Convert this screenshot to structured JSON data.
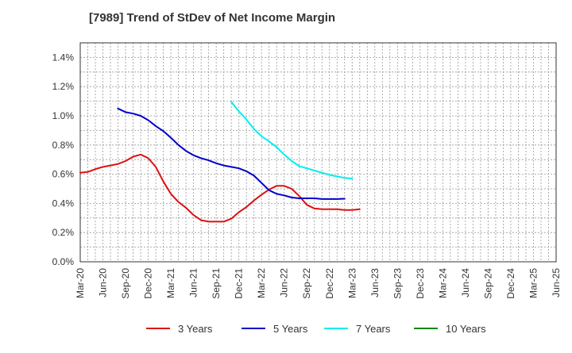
{
  "chart_data": {
    "type": "line",
    "title": "[7989]  Trend of StDev of Net Income Margin",
    "xlabel": "",
    "ylabel": "",
    "ylim": [
      0,
      1.5
    ],
    "y_ticks": [
      0,
      0.2,
      0.4,
      0.6,
      0.8,
      1.0,
      1.2,
      1.4
    ],
    "y_tick_labels": [
      "0.0%",
      "0.2%",
      "0.4%",
      "0.6%",
      "0.8%",
      "1.0%",
      "1.2%",
      "1.4%"
    ],
    "x_tick_labels": [
      "Mar-20",
      "Jun-20",
      "Sep-20",
      "Dec-20",
      "Mar-21",
      "Jun-21",
      "Sep-21",
      "Dec-21",
      "Mar-22",
      "Jun-22",
      "Sep-22",
      "Dec-22",
      "Mar-23",
      "Jun-23",
      "Sep-23",
      "Dec-23",
      "Mar-24",
      "Jun-24",
      "Sep-24",
      "Dec-24",
      "Mar-25",
      "Jun-25"
    ],
    "grid": true,
    "legend_position": "bottom",
    "series": [
      {
        "name": "3 Years",
        "color": "#dd1111",
        "values": [
          0.61,
          0.615,
          0.635,
          0.65,
          0.66,
          0.67,
          0.69,
          0.72,
          0.735,
          0.71,
          0.65,
          0.55,
          0.465,
          0.41,
          0.37,
          0.32,
          0.285,
          0.275,
          0.275,
          0.275,
          0.295,
          0.34,
          0.375,
          0.42,
          0.46,
          0.495,
          0.52,
          0.52,
          0.5,
          0.45,
          0.39,
          0.365,
          0.36,
          0.36,
          0.36,
          0.355,
          0.355,
          0.36
        ]
      },
      {
        "name": "5 Years",
        "color": "#0000cc",
        "values": [
          null,
          null,
          null,
          null,
          null,
          1.05,
          1.025,
          1.015,
          1.0,
          0.97,
          0.93,
          0.895,
          0.85,
          0.8,
          0.76,
          0.73,
          0.71,
          0.695,
          0.675,
          0.66,
          0.65,
          0.64,
          0.62,
          0.59,
          0.54,
          0.49,
          0.465,
          0.455,
          0.44,
          0.435,
          0.435,
          0.435,
          0.43,
          0.43,
          0.43,
          0.432
        ]
      },
      {
        "name": "7 Years",
        "color": "#00eeee",
        "values": [
          null,
          null,
          null,
          null,
          null,
          null,
          null,
          null,
          null,
          null,
          null,
          null,
          null,
          null,
          null,
          null,
          null,
          null,
          null,
          null,
          1.095,
          1.03,
          0.975,
          0.91,
          0.86,
          0.825,
          0.785,
          0.735,
          0.69,
          0.655,
          0.64,
          0.625,
          0.61,
          0.595,
          0.585,
          0.575,
          0.57
        ]
      },
      {
        "name": "10 Years",
        "color": "#008800",
        "values": []
      }
    ]
  }
}
